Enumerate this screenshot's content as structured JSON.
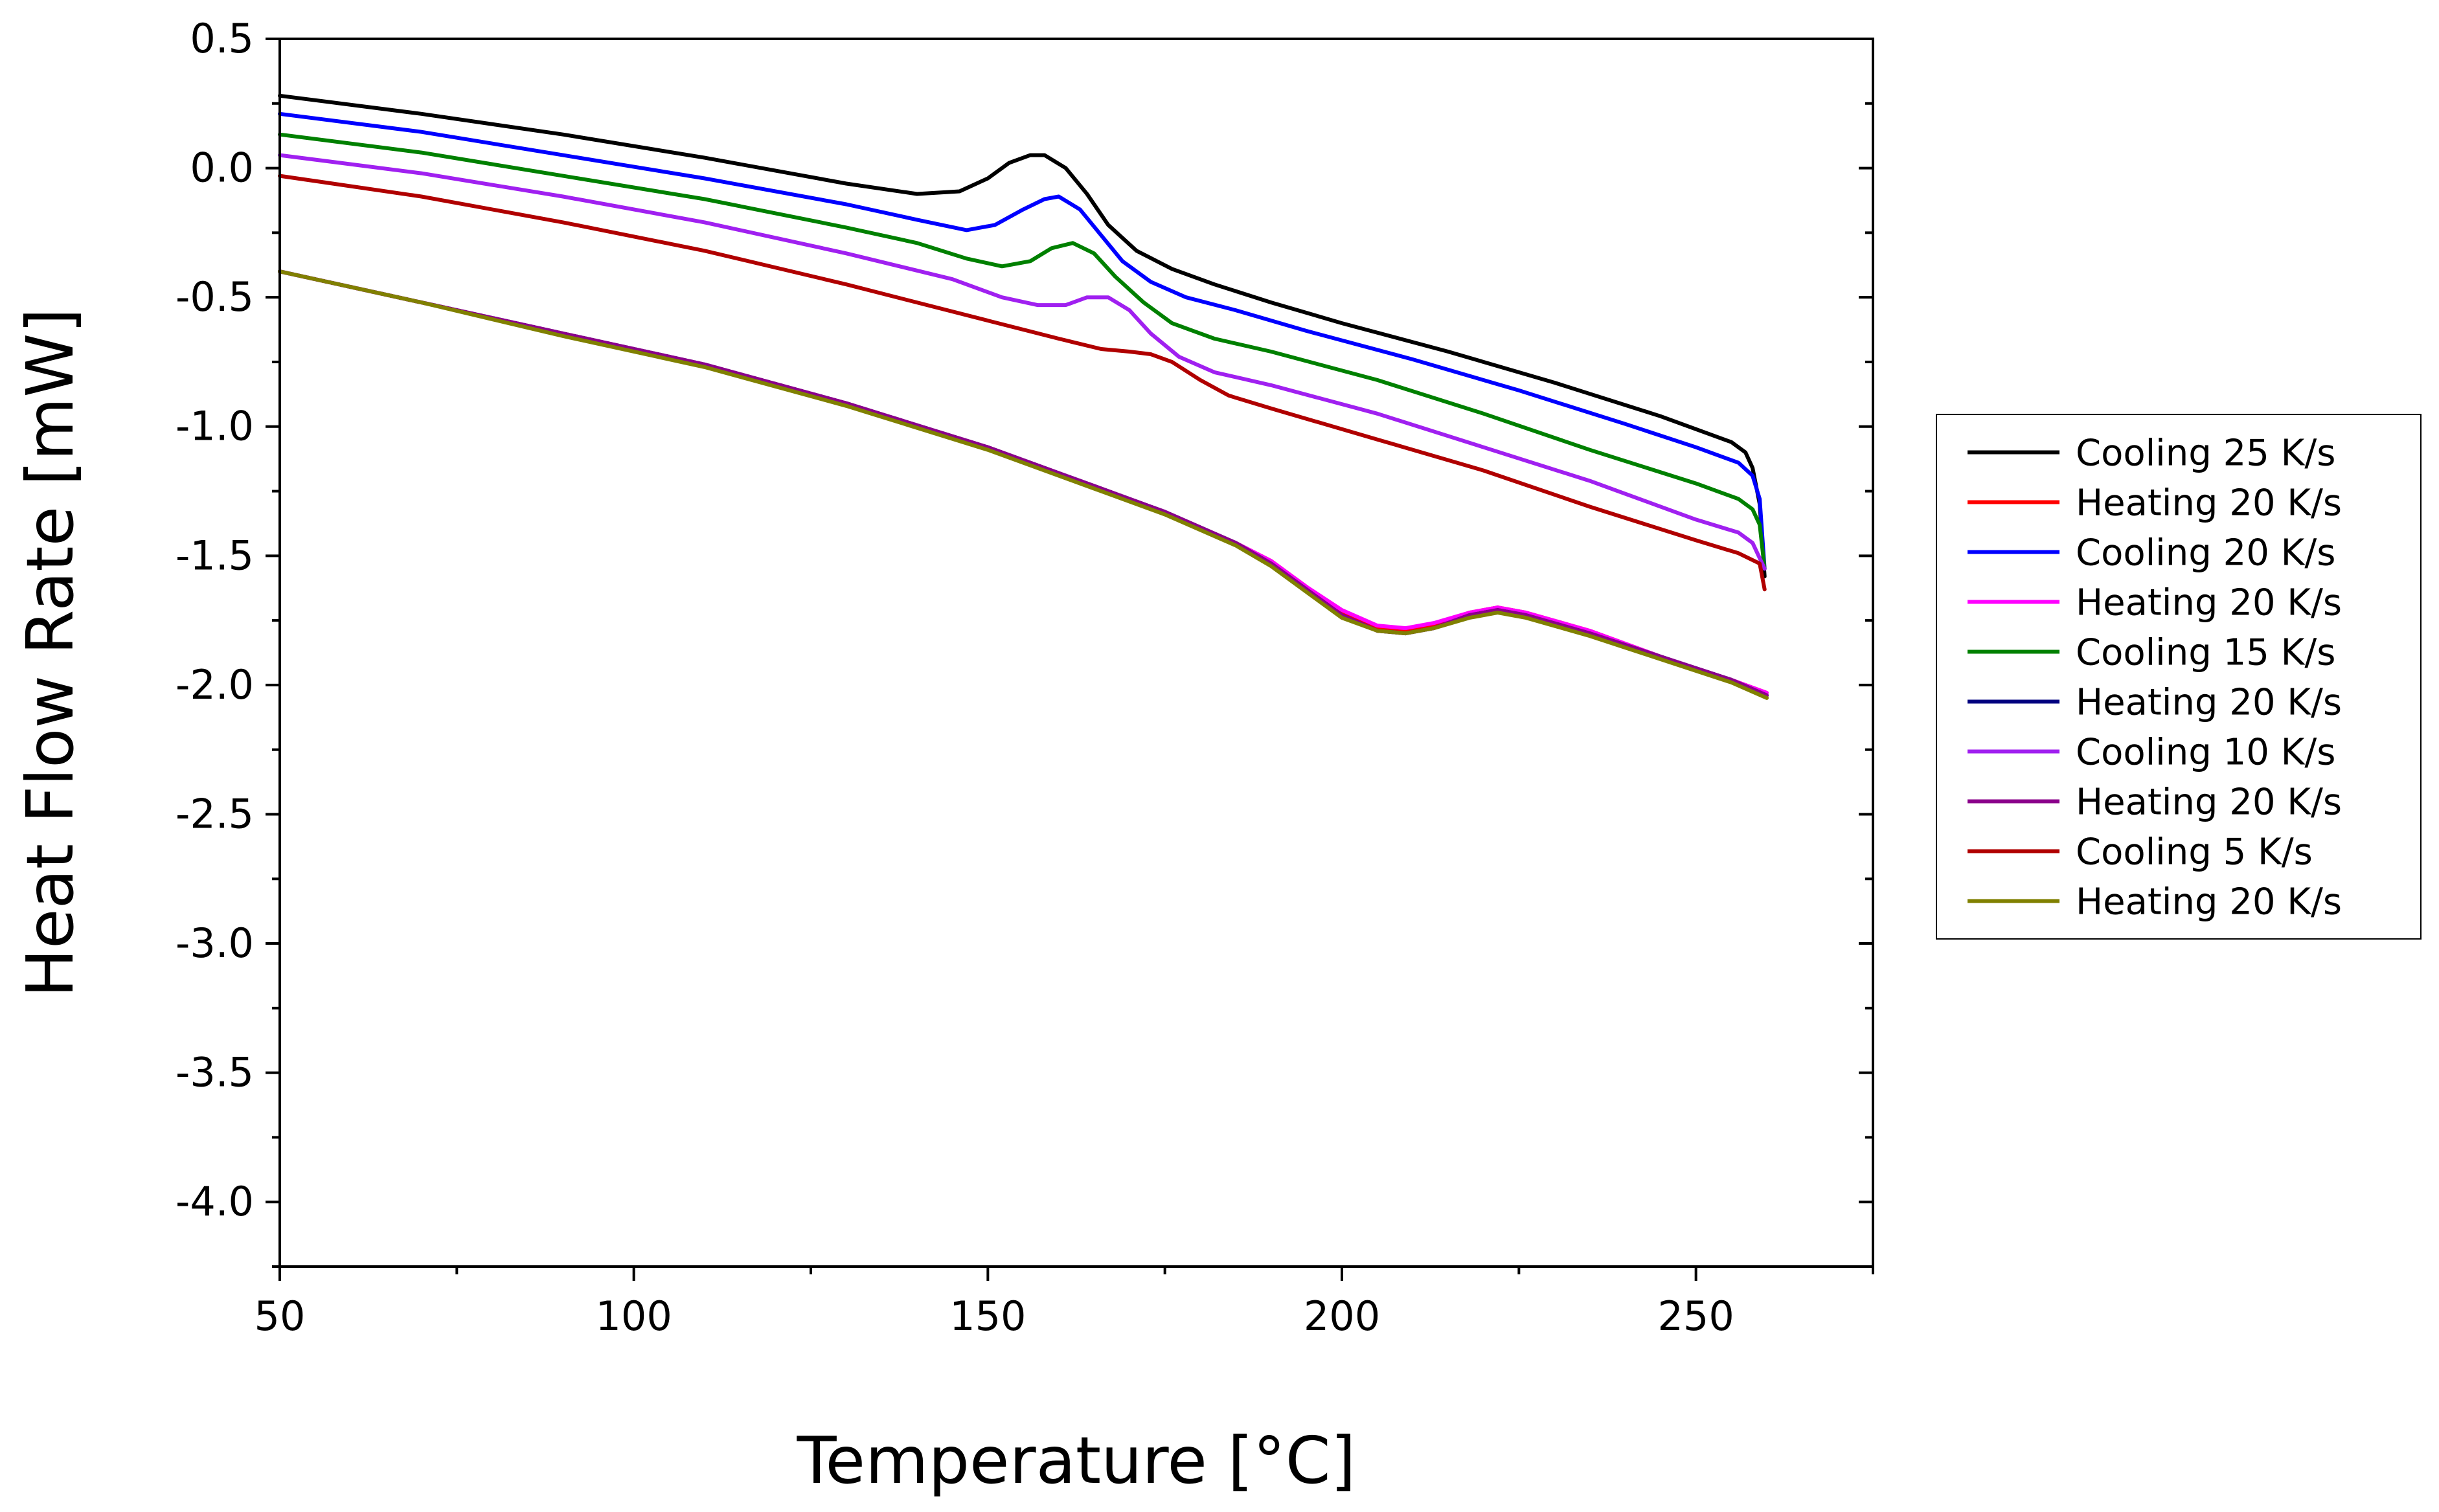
{
  "chart_data": {
    "type": "line",
    "title": "",
    "xlabel": "Temperature [°C]",
    "ylabel": "Heat Flow Rate [mW]",
    "xlim": [
      50,
      275
    ],
    "ylim": [
      -4.25,
      0.5
    ],
    "x_ticks": [
      50,
      100,
      150,
      200,
      250
    ],
    "x_tick_labels": [
      "50",
      "100",
      "150",
      "200",
      "250"
    ],
    "y_ticks": [
      0.5,
      0.0,
      -0.5,
      -1.0,
      -1.5,
      -2.0,
      -2.5,
      -3.0,
      -3.5,
      -4.0
    ],
    "y_tick_labels": [
      "0.5",
      "0.0",
      "-0.5",
      "-1.0",
      "-1.5",
      "-2.0",
      "-2.5",
      "-3.0",
      "-3.5",
      "-4.0"
    ],
    "grid": false,
    "legend_position": "right",
    "series": [
      {
        "name": "Cooling 25 K/s",
        "color": "#000000",
        "points": [
          [
            50,
            0.28
          ],
          [
            70,
            0.21
          ],
          [
            90,
            0.13
          ],
          [
            110,
            0.04
          ],
          [
            130,
            -0.06
          ],
          [
            140,
            -0.1
          ],
          [
            146,
            -0.09
          ],
          [
            150,
            -0.04
          ],
          [
            153,
            0.02
          ],
          [
            156,
            0.05
          ],
          [
            158,
            0.05
          ],
          [
            161,
            0.0
          ],
          [
            164,
            -0.1
          ],
          [
            167,
            -0.22
          ],
          [
            171,
            -0.32
          ],
          [
            176,
            -0.39
          ],
          [
            182,
            -0.45
          ],
          [
            190,
            -0.52
          ],
          [
            200,
            -0.6
          ],
          [
            215,
            -0.71
          ],
          [
            230,
            -0.83
          ],
          [
            245,
            -0.96
          ],
          [
            255,
            -1.06
          ],
          [
            257,
            -1.1
          ],
          [
            258,
            -1.16
          ],
          [
            259,
            -1.3
          ],
          [
            259.7,
            -1.58
          ]
        ]
      },
      {
        "name": "Heating 20 K/s",
        "color": "#ff0000",
        "points": [
          [
            50,
            -0.4
          ],
          [
            70,
            -0.52
          ],
          [
            90,
            -0.64
          ],
          [
            110,
            -0.76
          ],
          [
            130,
            -0.91
          ],
          [
            150,
            -1.08
          ],
          [
            165,
            -1.23
          ],
          [
            175,
            -1.33
          ],
          [
            185,
            -1.45
          ],
          [
            190,
            -1.52
          ],
          [
            195,
            -1.62
          ],
          [
            200,
            -1.72
          ],
          [
            205,
            -1.78
          ],
          [
            209,
            -1.79
          ],
          [
            213,
            -1.77
          ],
          [
            218,
            -1.72
          ],
          [
            222,
            -1.7
          ],
          [
            226,
            -1.72
          ],
          [
            235,
            -1.79
          ],
          [
            245,
            -1.89
          ],
          [
            255,
            -1.98
          ],
          [
            260,
            -2.03
          ]
        ]
      },
      {
        "name": "Cooling 20 K/s",
        "color": "#0000ff",
        "points": [
          [
            50,
            0.21
          ],
          [
            70,
            0.14
          ],
          [
            90,
            0.05
          ],
          [
            110,
            -0.04
          ],
          [
            130,
            -0.14
          ],
          [
            140,
            -0.2
          ],
          [
            147,
            -0.24
          ],
          [
            151,
            -0.22
          ],
          [
            155,
            -0.16
          ],
          [
            158,
            -0.12
          ],
          [
            160,
            -0.11
          ],
          [
            163,
            -0.16
          ],
          [
            166,
            -0.26
          ],
          [
            169,
            -0.36
          ],
          [
            173,
            -0.44
          ],
          [
            178,
            -0.5
          ],
          [
            185,
            -0.55
          ],
          [
            195,
            -0.63
          ],
          [
            210,
            -0.74
          ],
          [
            225,
            -0.86
          ],
          [
            240,
            -0.99
          ],
          [
            250,
            -1.08
          ],
          [
            256,
            -1.14
          ],
          [
            258,
            -1.19
          ],
          [
            259,
            -1.28
          ],
          [
            259.7,
            -1.55
          ]
        ]
      },
      {
        "name": "Heating 20 K/s",
        "color": "#ff00ff",
        "points": [
          [
            50,
            -0.4
          ],
          [
            70,
            -0.52
          ],
          [
            90,
            -0.64
          ],
          [
            110,
            -0.76
          ],
          [
            130,
            -0.91
          ],
          [
            150,
            -1.08
          ],
          [
            165,
            -1.23
          ],
          [
            175,
            -1.33
          ],
          [
            185,
            -1.45
          ],
          [
            190,
            -1.52
          ],
          [
            195,
            -1.62
          ],
          [
            200,
            -1.71
          ],
          [
            205,
            -1.77
          ],
          [
            209,
            -1.78
          ],
          [
            213,
            -1.76
          ],
          [
            218,
            -1.72
          ],
          [
            222,
            -1.7
          ],
          [
            226,
            -1.72
          ],
          [
            235,
            -1.79
          ],
          [
            245,
            -1.89
          ],
          [
            255,
            -1.98
          ],
          [
            260,
            -2.03
          ]
        ]
      },
      {
        "name": "Cooling 15 K/s",
        "color": "#008000",
        "points": [
          [
            50,
            0.13
          ],
          [
            70,
            0.06
          ],
          [
            90,
            -0.03
          ],
          [
            110,
            -0.12
          ],
          [
            130,
            -0.23
          ],
          [
            140,
            -0.29
          ],
          [
            147,
            -0.35
          ],
          [
            152,
            -0.38
          ],
          [
            156,
            -0.36
          ],
          [
            159,
            -0.31
          ],
          [
            162,
            -0.29
          ],
          [
            165,
            -0.33
          ],
          [
            168,
            -0.42
          ],
          [
            172,
            -0.52
          ],
          [
            176,
            -0.6
          ],
          [
            182,
            -0.66
          ],
          [
            190,
            -0.71
          ],
          [
            205,
            -0.82
          ],
          [
            220,
            -0.95
          ],
          [
            235,
            -1.09
          ],
          [
            250,
            -1.22
          ],
          [
            256,
            -1.28
          ],
          [
            258,
            -1.32
          ],
          [
            259,
            -1.38
          ],
          [
            259.7,
            -1.55
          ]
        ]
      },
      {
        "name": "Heating 20 K/s",
        "color": "#000080",
        "points": [
          [
            50,
            -0.4
          ],
          [
            70,
            -0.52
          ],
          [
            90,
            -0.64
          ],
          [
            110,
            -0.76
          ],
          [
            130,
            -0.91
          ],
          [
            150,
            -1.08
          ],
          [
            165,
            -1.23
          ],
          [
            175,
            -1.33
          ],
          [
            185,
            -1.45
          ],
          [
            190,
            -1.53
          ],
          [
            195,
            -1.63
          ],
          [
            200,
            -1.73
          ],
          [
            205,
            -1.79
          ],
          [
            209,
            -1.8
          ],
          [
            213,
            -1.78
          ],
          [
            218,
            -1.73
          ],
          [
            222,
            -1.71
          ],
          [
            226,
            -1.73
          ],
          [
            235,
            -1.8
          ],
          [
            245,
            -1.89
          ],
          [
            255,
            -1.98
          ],
          [
            260,
            -2.04
          ]
        ]
      },
      {
        "name": "Cooling 10 K/s",
        "color": "#a020f0",
        "points": [
          [
            50,
            0.05
          ],
          [
            70,
            -0.02
          ],
          [
            90,
            -0.11
          ],
          [
            110,
            -0.21
          ],
          [
            130,
            -0.33
          ],
          [
            145,
            -0.43
          ],
          [
            152,
            -0.5
          ],
          [
            157,
            -0.53
          ],
          [
            161,
            -0.53
          ],
          [
            164,
            -0.5
          ],
          [
            167,
            -0.5
          ],
          [
            170,
            -0.55
          ],
          [
            173,
            -0.64
          ],
          [
            177,
            -0.73
          ],
          [
            182,
            -0.79
          ],
          [
            190,
            -0.84
          ],
          [
            205,
            -0.95
          ],
          [
            220,
            -1.08
          ],
          [
            235,
            -1.21
          ],
          [
            250,
            -1.36
          ],
          [
            256,
            -1.41
          ],
          [
            258,
            -1.45
          ],
          [
            259.7,
            -1.55
          ]
        ]
      },
      {
        "name": "Heating 20 K/s",
        "color": "#8b008b",
        "points": [
          [
            50,
            -0.4
          ],
          [
            70,
            -0.52
          ],
          [
            90,
            -0.64
          ],
          [
            110,
            -0.76
          ],
          [
            130,
            -0.91
          ],
          [
            150,
            -1.08
          ],
          [
            165,
            -1.23
          ],
          [
            175,
            -1.33
          ],
          [
            185,
            -1.45
          ],
          [
            190,
            -1.53
          ],
          [
            195,
            -1.63
          ],
          [
            200,
            -1.73
          ],
          [
            205,
            -1.79
          ],
          [
            209,
            -1.8
          ],
          [
            213,
            -1.78
          ],
          [
            218,
            -1.73
          ],
          [
            222,
            -1.71
          ],
          [
            226,
            -1.73
          ],
          [
            235,
            -1.8
          ],
          [
            245,
            -1.89
          ],
          [
            255,
            -1.98
          ],
          [
            260,
            -2.04
          ]
        ]
      },
      {
        "name": "Cooling 5 K/s",
        "color": "#b00000",
        "points": [
          [
            50,
            -0.03
          ],
          [
            70,
            -0.11
          ],
          [
            90,
            -0.21
          ],
          [
            110,
            -0.32
          ],
          [
            130,
            -0.45
          ],
          [
            150,
            -0.59
          ],
          [
            160,
            -0.66
          ],
          [
            166,
            -0.7
          ],
          [
            170,
            -0.71
          ],
          [
            173,
            -0.72
          ],
          [
            176,
            -0.75
          ],
          [
            180,
            -0.82
          ],
          [
            184,
            -0.88
          ],
          [
            190,
            -0.93
          ],
          [
            205,
            -1.05
          ],
          [
            220,
            -1.17
          ],
          [
            235,
            -1.31
          ],
          [
            250,
            -1.44
          ],
          [
            256,
            -1.49
          ],
          [
            259,
            -1.53
          ],
          [
            259.7,
            -1.63
          ]
        ]
      },
      {
        "name": "Heating 20 K/s",
        "color": "#808000",
        "points": [
          [
            50,
            -0.4
          ],
          [
            70,
            -0.52
          ],
          [
            90,
            -0.65
          ],
          [
            110,
            -0.77
          ],
          [
            130,
            -0.92
          ],
          [
            150,
            -1.09
          ],
          [
            165,
            -1.24
          ],
          [
            175,
            -1.34
          ],
          [
            185,
            -1.46
          ],
          [
            190,
            -1.54
          ],
          [
            195,
            -1.64
          ],
          [
            200,
            -1.74
          ],
          [
            205,
            -1.79
          ],
          [
            209,
            -1.8
          ],
          [
            213,
            -1.78
          ],
          [
            218,
            -1.74
          ],
          [
            222,
            -1.72
          ],
          [
            226,
            -1.74
          ],
          [
            235,
            -1.81
          ],
          [
            245,
            -1.9
          ],
          [
            255,
            -1.99
          ],
          [
            260,
            -2.05
          ]
        ]
      }
    ]
  }
}
